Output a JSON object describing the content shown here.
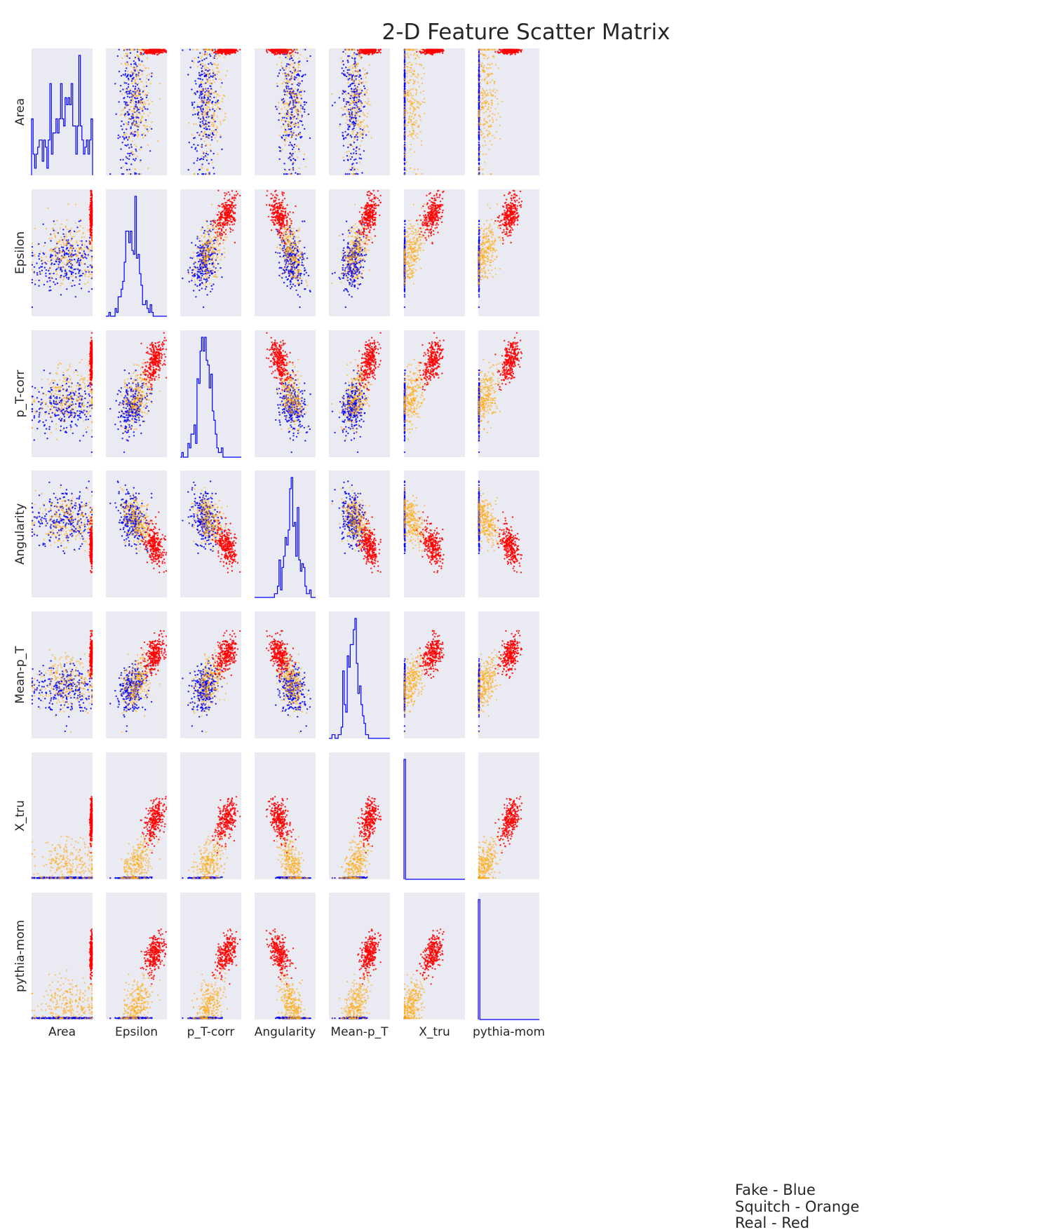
{
  "chart_data": {
    "type": "scatter",
    "title": "2-D Feature Scatter Matrix",
    "features": [
      "Area",
      "Epsilon",
      "p_T-corr",
      "Angularity",
      "Mean-p_T",
      "X_tru",
      "pythia-mom"
    ],
    "diagonal": "histogram",
    "grid": false,
    "legend_position": "bottom-right",
    "legend": [
      "Fake - Blue",
      "Squitch - Orange",
      "Real - Red"
    ],
    "classes": [
      {
        "name": "Fake",
        "color": "#0000ff",
        "centers": {
          "Area": 0.55,
          "Epsilon": 0.42,
          "p_T-corr": 0.4,
          "Angularity": 0.62,
          "Mean-p_T": 0.38,
          "X_tru": 0.01,
          "pythia-mom": 0.01
        },
        "spread": {
          "Area": 0.25,
          "Epsilon": 0.13,
          "p_T-corr": 0.11,
          "Angularity": 0.11,
          "Mean-p_T": 0.1,
          "X_tru": 0.003,
          "pythia-mom": 0.003
        }
      },
      {
        "name": "Squitch",
        "color": "#ffa500",
        "centers": {
          "Area": 0.6,
          "Epsilon": 0.5,
          "p_T-corr": 0.48,
          "Angularity": 0.6,
          "Mean-p_T": 0.44,
          "X_tru": 0.12,
          "pythia-mom": 0.12
        },
        "spread": {
          "Area": 0.25,
          "Epsilon": 0.12,
          "p_T-corr": 0.12,
          "Angularity": 0.1,
          "Mean-p_T": 0.1,
          "X_tru": 0.1,
          "pythia-mom": 0.1
        }
      },
      {
        "name": "Real",
        "color": "#ff0000",
        "centers": {
          "Area": 0.98,
          "Epsilon": 0.8,
          "p_T-corr": 0.76,
          "Angularity": 0.4,
          "Mean-p_T": 0.66,
          "X_tru": 0.47,
          "pythia-mom": 0.52
        },
        "spread": {
          "Area": 0.01,
          "Epsilon": 0.08,
          "p_T-corr": 0.08,
          "Angularity": 0.08,
          "Mean-p_T": 0.07,
          "X_tru": 0.08,
          "pythia-mom": 0.08
        }
      }
    ],
    "histogram_class": "Fake",
    "histogram_color": "#0000ff",
    "panel_background": "#eaeaf2"
  }
}
